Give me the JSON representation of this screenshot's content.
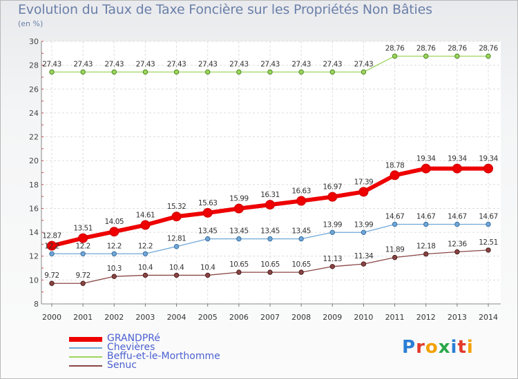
{
  "header": {
    "title": "Evolution du Taux de Taxe Foncière sur les Propriétés Non Bâties",
    "unit": "(en %)"
  },
  "logo": {
    "text": "Proxiti",
    "colors": [
      "#2a7fd4",
      "#e23a2a",
      "#f2a100",
      "#2aa84a",
      "#2a7fd4",
      "#e23a2a",
      "#f2a100"
    ]
  },
  "chart_data": {
    "type": "line",
    "title": "Evolution du Taux de Taxe Foncière sur les Propriétés Non Bâties",
    "ylabel": "(en %)",
    "xlabel": "",
    "x": [
      "2000",
      "2001",
      "2002",
      "2003",
      "2004",
      "2005",
      "2006",
      "2007",
      "2008",
      "2009",
      "2010",
      "2011",
      "2012",
      "2013",
      "2014"
    ],
    "ylim": [
      8,
      30
    ],
    "yticks": [
      "8",
      "10",
      "12",
      "14",
      "16",
      "18",
      "20",
      "22",
      "24",
      "26",
      "28",
      "30"
    ],
    "grid": true,
    "legend_position": "bottom-left",
    "series": [
      {
        "name": "GRANDPRé",
        "color": "#ee0000",
        "values": [
          12.87,
          13.51,
          14.05,
          14.61,
          15.32,
          15.63,
          15.99,
          16.31,
          16.63,
          16.97,
          17.39,
          18.78,
          19.34,
          19.34,
          19.34
        ],
        "labels": [
          "12.87",
          "13.51",
          "14.05",
          "14.61",
          "15.32",
          "15.63",
          "15.99",
          "16.31",
          "16.63",
          "16.97",
          "17.39",
          "18.78",
          "19.34",
          "19.34",
          "19.34"
        ]
      },
      {
        "name": "Chevières",
        "color": "#6fa7d8",
        "values": [
          12.2,
          12.2,
          12.2,
          12.2,
          12.81,
          13.45,
          13.45,
          13.45,
          13.45,
          13.99,
          13.99,
          14.67,
          14.67,
          14.67,
          14.67
        ],
        "labels": [
          "12.2",
          "12.2",
          "12.2",
          "12.2",
          "12.81",
          "13.45",
          "13.45",
          "13.45",
          "13.45",
          "13.99",
          "13.99",
          "14.67",
          "14.67",
          "14.67",
          "14.67"
        ]
      },
      {
        "name": "Beffu-et-le-Morthomme",
        "color": "#9fd45f",
        "values": [
          27.43,
          27.43,
          27.43,
          27.43,
          27.43,
          27.43,
          27.43,
          27.43,
          27.43,
          27.43,
          27.43,
          28.76,
          28.76,
          28.76,
          28.76
        ],
        "labels": [
          "27.43",
          "27.43",
          "27.43",
          "27.43",
          "27.43",
          "27.43",
          "27.43",
          "27.43",
          "27.43",
          "27.43",
          "27.43",
          "28.76",
          "28.76",
          "28.76",
          "28.76"
        ]
      },
      {
        "name": "Senuc",
        "color": "#8a4545",
        "values": [
          9.72,
          9.72,
          10.3,
          10.4,
          10.4,
          10.4,
          10.65,
          10.65,
          10.65,
          11.13,
          11.34,
          11.89,
          12.18,
          12.36,
          12.51
        ],
        "labels": [
          "9.72",
          "9.72",
          "10.3",
          "10.4",
          "10.4",
          "10.4",
          "10.65",
          "10.65",
          "10.65",
          "11.13",
          "11.34",
          "11.89",
          "12.18",
          "12.36",
          "12.51"
        ]
      }
    ]
  }
}
